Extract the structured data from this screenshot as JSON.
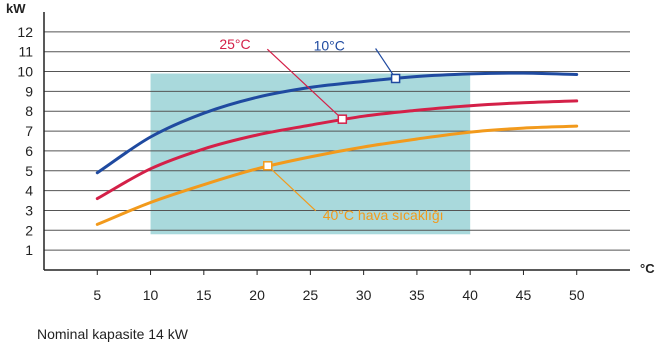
{
  "chart_data": {
    "type": "line",
    "ylabel": "kW",
    "xlabel": "°C",
    "xlim": [
      0,
      55
    ],
    "ylim": [
      0,
      13
    ],
    "x_ticks": [
      5,
      10,
      15,
      20,
      25,
      30,
      35,
      40,
      45,
      50
    ],
    "y_ticks": [
      1,
      2,
      3,
      4,
      5,
      6,
      7,
      8,
      9,
      10,
      11,
      12
    ],
    "grid": "horizontal",
    "shaded_region": {
      "x": [
        10,
        40
      ],
      "y": [
        1.8,
        9.9
      ],
      "color": "#a9d9dc"
    },
    "series": [
      {
        "name": "10°C",
        "color": "#1f4aa0",
        "x": [
          5,
          10,
          15,
          20,
          25,
          30,
          35,
          40,
          45,
          50
        ],
        "y": [
          4.9,
          6.7,
          7.9,
          8.7,
          9.2,
          9.5,
          9.75,
          9.88,
          9.92,
          9.85
        ],
        "marker": {
          "x": 33,
          "y": 9.65
        }
      },
      {
        "name": "25°C",
        "color": "#d42048",
        "x": [
          5,
          10,
          15,
          20,
          25,
          30,
          35,
          40,
          45,
          50
        ],
        "y": [
          3.6,
          5.1,
          6.1,
          6.8,
          7.3,
          7.75,
          8.05,
          8.28,
          8.43,
          8.52
        ],
        "marker": {
          "x": 28,
          "y": 7.6
        }
      },
      {
        "name": "40°C hava sıcaklığı",
        "color": "#f29a1c",
        "x": [
          5,
          10,
          15,
          20,
          25,
          30,
          35,
          40,
          45,
          50
        ],
        "y": [
          2.3,
          3.4,
          4.3,
          5.1,
          5.7,
          6.2,
          6.6,
          6.95,
          7.15,
          7.25
        ],
        "marker": {
          "x": 21,
          "y": 5.25
        }
      }
    ]
  },
  "caption": "Nominal kapasite 14 kW"
}
